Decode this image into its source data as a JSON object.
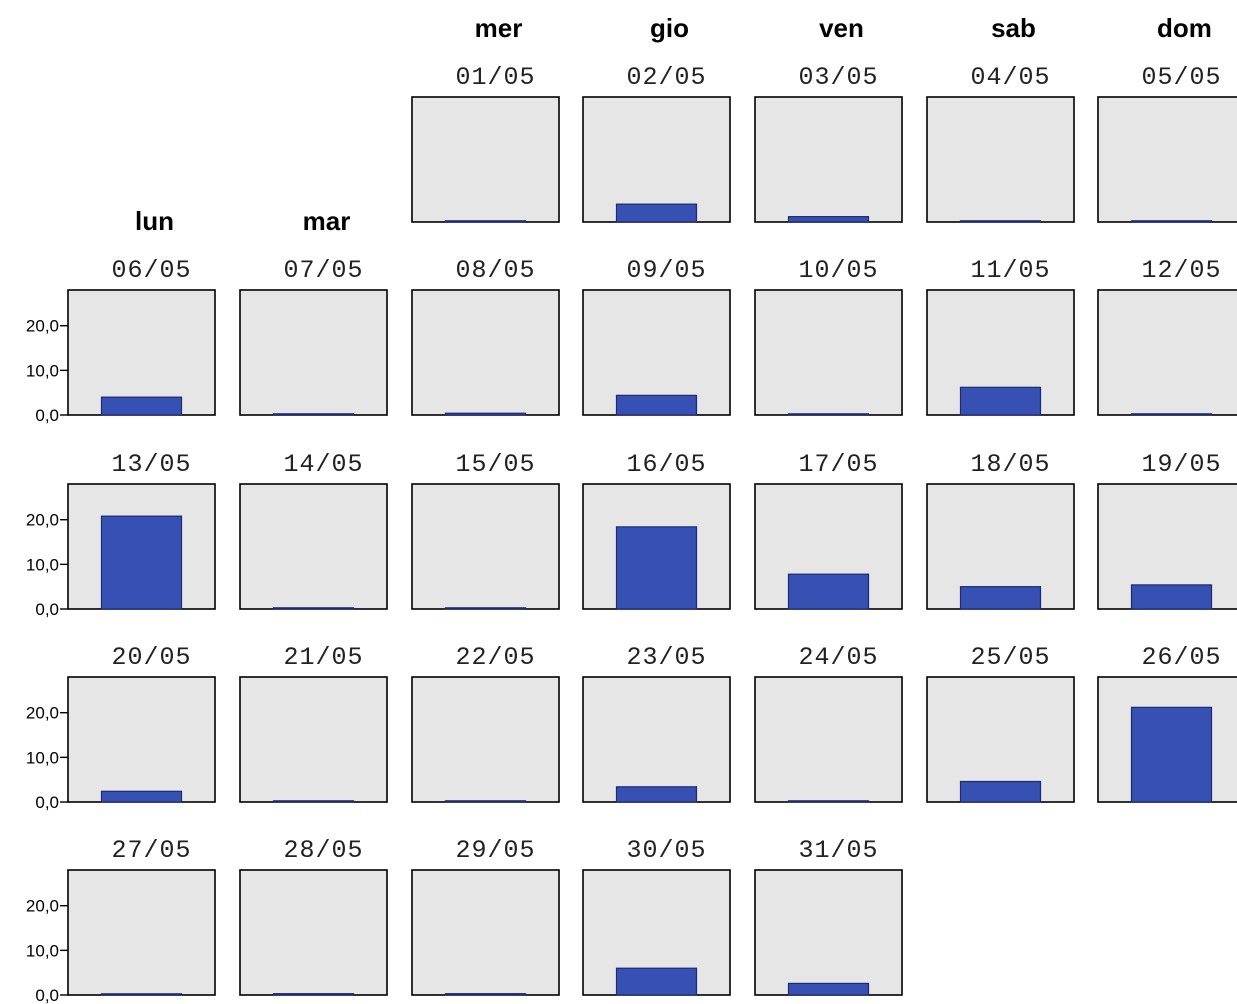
{
  "chart_data": {
    "type": "bar",
    "layout": "calendar-small-multiples",
    "weekdays": [
      "lun",
      "mar",
      "mer",
      "gio",
      "ven",
      "sab",
      "dom"
    ],
    "yticks": [
      "0,0",
      "10,0",
      "20,0"
    ],
    "yticks_values": [
      0,
      10,
      20
    ],
    "ylim": [
      0,
      28
    ],
    "colors": {
      "bar": "#3650b4",
      "bar_border": "#1e2a6e",
      "panel": "#e6e6e6"
    },
    "days": [
      {
        "date": "01/05",
        "week": 0,
        "weekday": 2,
        "value": 0.2
      },
      {
        "date": "02/05",
        "week": 0,
        "weekday": 3,
        "value": 4.0
      },
      {
        "date": "03/05",
        "week": 0,
        "weekday": 4,
        "value": 1.2
      },
      {
        "date": "04/05",
        "week": 0,
        "weekday": 5,
        "value": 0
      },
      {
        "date": "05/05",
        "week": 0,
        "weekday": 6,
        "value": 0
      },
      {
        "date": "06/05",
        "week": 1,
        "weekday": 0,
        "value": 4.0
      },
      {
        "date": "07/05",
        "week": 1,
        "weekday": 1,
        "value": 0.2
      },
      {
        "date": "08/05",
        "week": 1,
        "weekday": 2,
        "value": 0.4
      },
      {
        "date": "09/05",
        "week": 1,
        "weekday": 3,
        "value": 4.4
      },
      {
        "date": "10/05",
        "week": 1,
        "weekday": 4,
        "value": 0
      },
      {
        "date": "11/05",
        "week": 1,
        "weekday": 5,
        "value": 6.2
      },
      {
        "date": "12/05",
        "week": 1,
        "weekday": 6,
        "value": 0
      },
      {
        "date": "13/05",
        "week": 2,
        "weekday": 0,
        "value": 20.8
      },
      {
        "date": "14/05",
        "week": 2,
        "weekday": 1,
        "value": 0
      },
      {
        "date": "15/05",
        "week": 2,
        "weekday": 2,
        "value": 0
      },
      {
        "date": "16/05",
        "week": 2,
        "weekday": 3,
        "value": 18.4
      },
      {
        "date": "17/05",
        "week": 2,
        "weekday": 4,
        "value": 7.8
      },
      {
        "date": "18/05",
        "week": 2,
        "weekday": 5,
        "value": 5.0
      },
      {
        "date": "19/05",
        "week": 2,
        "weekday": 6,
        "value": 5.4
      },
      {
        "date": "20/05",
        "week": 3,
        "weekday": 0,
        "value": 2.4
      },
      {
        "date": "21/05",
        "week": 3,
        "weekday": 1,
        "value": 0.1
      },
      {
        "date": "22/05",
        "week": 3,
        "weekday": 2,
        "value": 0.1
      },
      {
        "date": "23/05",
        "week": 3,
        "weekday": 3,
        "value": 3.4
      },
      {
        "date": "24/05",
        "week": 3,
        "weekday": 4,
        "value": 0.1
      },
      {
        "date": "25/05",
        "week": 3,
        "weekday": 5,
        "value": 4.6
      },
      {
        "date": "26/05",
        "week": 3,
        "weekday": 6,
        "value": 21.2
      },
      {
        "date": "27/05",
        "week": 4,
        "weekday": 0,
        "value": 0.1
      },
      {
        "date": "28/05",
        "week": 4,
        "weekday": 1,
        "value": 0.3
      },
      {
        "date": "29/05",
        "week": 4,
        "weekday": 2,
        "value": 0.3
      },
      {
        "date": "30/05",
        "week": 4,
        "weekday": 3,
        "value": 6.0
      },
      {
        "date": "31/05",
        "week": 4,
        "weekday": 4,
        "value": 2.6
      }
    ]
  }
}
